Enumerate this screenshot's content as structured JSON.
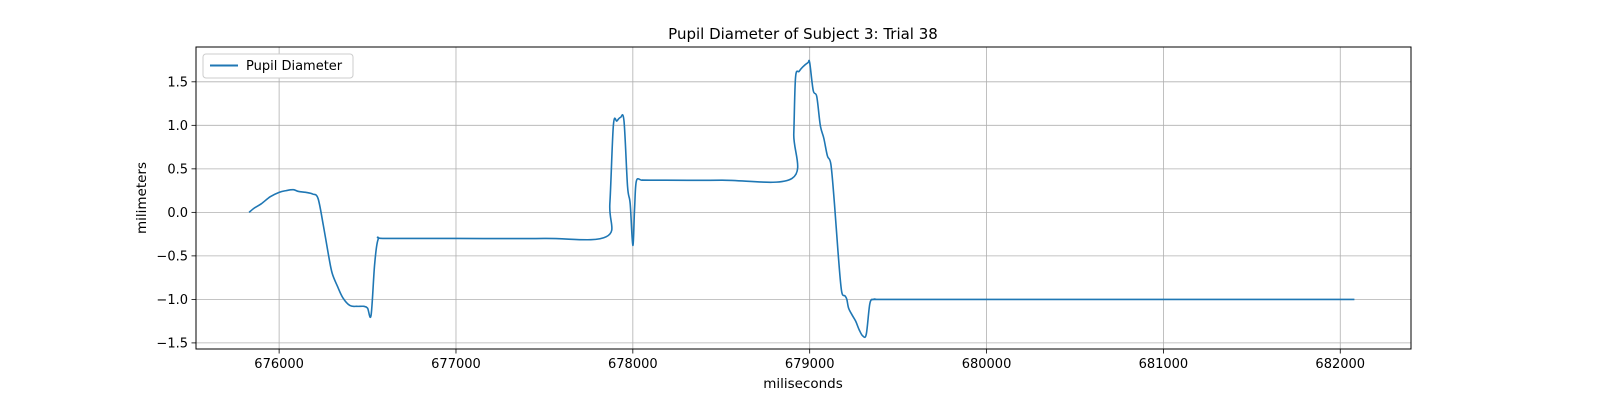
{
  "chart_data": {
    "type": "line",
    "title": "Pupil Diameter of Subject 3: Trial 38",
    "xlabel": "miliseconds",
    "ylabel": "milimeters",
    "xlim": [
      675530,
      682400
    ],
    "ylim": [
      -1.57,
      1.9
    ],
    "x_ticks": [
      676000,
      677000,
      678000,
      679000,
      680000,
      681000,
      682000
    ],
    "x_tick_labels": [
      "676000",
      "677000",
      "678000",
      "679000",
      "680000",
      "681000",
      "682000"
    ],
    "y_ticks": [
      -1.5,
      -1.0,
      -0.5,
      0.0,
      0.5,
      1.0,
      1.5
    ],
    "y_tick_labels": [
      "−1.5",
      "−1.0",
      "−0.5",
      "0.0",
      "0.5",
      "1.0",
      "1.5"
    ],
    "grid": true,
    "legend_position": "top-left",
    "line_color": "#1f77b4",
    "series": [
      {
        "name": "Pupil Diameter",
        "x": [
          675830,
          675860,
          675900,
          675950,
          676000,
          676040,
          676080,
          676110,
          676150,
          676190,
          676220,
          676250,
          676280,
          676300,
          676330,
          676360,
          676400,
          676440,
          676480,
          676500,
          676520,
          676540,
          676560,
          676600,
          677000,
          677500,
          677850,
          677870,
          677890,
          677910,
          677930,
          677950,
          677970,
          677985,
          678000,
          678010,
          678020,
          678050,
          678100,
          678500,
          678900,
          678910,
          678920,
          678940,
          678960,
          678990,
          679000,
          679020,
          679040,
          679060,
          679080,
          679100,
          679120,
          679140,
          679160,
          679180,
          679200,
          679210,
          679220,
          679240,
          679260,
          679280,
          679300,
          679320,
          679340,
          679360,
          679380,
          679400,
          680000,
          681000,
          682080
        ],
        "y": [
          0.0,
          0.05,
          0.1,
          0.18,
          0.23,
          0.25,
          0.26,
          0.24,
          0.23,
          0.21,
          0.16,
          -0.15,
          -0.5,
          -0.7,
          -0.85,
          -0.98,
          -1.07,
          -1.08,
          -1.08,
          -1.1,
          -1.18,
          -0.6,
          -0.31,
          -0.3,
          -0.3,
          -0.3,
          -0.28,
          0.1,
          1.0,
          1.05,
          1.09,
          1.05,
          0.3,
          0.1,
          -0.38,
          0.05,
          0.36,
          0.37,
          0.37,
          0.37,
          0.39,
          0.9,
          1.55,
          1.62,
          1.67,
          1.72,
          1.72,
          1.4,
          1.33,
          1.0,
          0.85,
          0.65,
          0.55,
          0.1,
          -0.45,
          -0.9,
          -0.96,
          -1.0,
          -1.1,
          -1.18,
          -1.25,
          -1.35,
          -1.42,
          -1.4,
          -1.05,
          -1.0,
          -1.0,
          -1.0,
          -1.0,
          -1.0,
          -1.0
        ]
      }
    ]
  }
}
